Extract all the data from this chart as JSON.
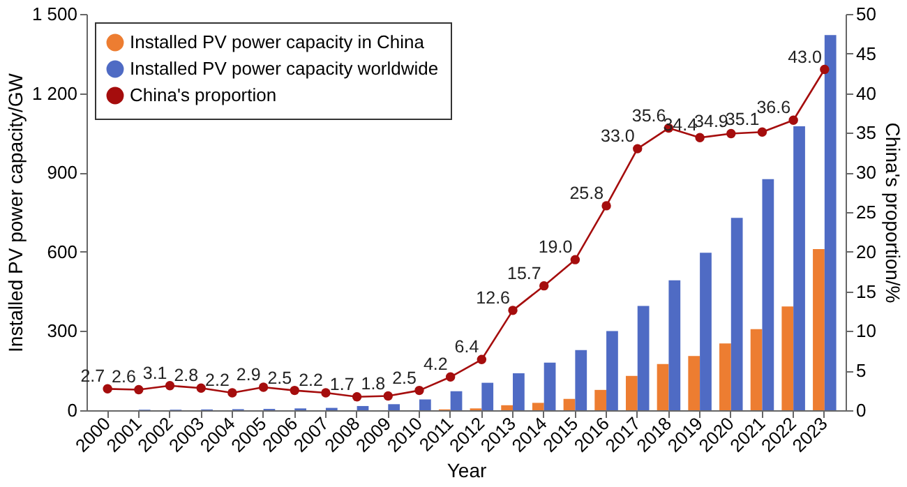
{
  "chart_data": {
    "type": "bar",
    "xlabel": "Year",
    "ylabel": "Installed PV power capacity/GW",
    "y2label": "China's proportion/%",
    "categories": [
      "2000",
      "2001",
      "2002",
      "2003",
      "2004",
      "2005",
      "2006",
      "2007",
      "2008",
      "2009",
      "2010",
      "2011",
      "2012",
      "2013",
      "2014",
      "2015",
      "2016",
      "2017",
      "2018",
      "2019",
      "2020",
      "2021",
      "2022",
      "2023"
    ],
    "series": [
      {
        "name": "Installed PV power capacity in China",
        "color": "#ed7d31",
        "values": [
          0,
          0,
          0,
          0,
          0,
          0,
          0,
          0,
          0,
          0,
          null,
          3,
          7,
          19,
          28,
          43,
          77,
          130,
          175,
          205,
          253,
          307,
          393,
          610
        ]
      },
      {
        "name": "Installed PV power capacity worldwide",
        "color": "#4f6bc4",
        "values": [
          null,
          2,
          2,
          3,
          4,
          5,
          7,
          9,
          16,
          23,
          41,
          72,
          104,
          140,
          180,
          228,
          300,
          395,
          492,
          596,
          728,
          875,
          1075,
          1420
        ]
      },
      {
        "name": "China's proportion",
        "type": "line",
        "axis": "y2",
        "color": "#a50d0d",
        "marker": "circle",
        "values": [
          2.7,
          2.6,
          3.1,
          2.8,
          2.2,
          2.9,
          2.5,
          2.2,
          1.7,
          1.8,
          2.5,
          4.2,
          6.4,
          12.6,
          15.7,
          19.0,
          25.8,
          33.0,
          35.6,
          34.4,
          34.9,
          35.1,
          36.6,
          43.0
        ],
        "value_labels": [
          "2.7",
          "2.6",
          "3.1",
          "2.8",
          "2.2",
          "2.9",
          "2.5",
          "2.2",
          "1.7",
          "1.8",
          "2.5",
          "4.2",
          "6.4",
          "12.6",
          "15.7",
          "19.0",
          "25.8",
          "33.0",
          "35.6",
          "34.4",
          "34.9",
          "35.1",
          "36.6",
          "43.0"
        ]
      }
    ],
    "ylim": [
      0,
      1500
    ],
    "yticks": [
      {
        "value": 0,
        "label": "0"
      },
      {
        "value": 300,
        "label": "300"
      },
      {
        "value": 600,
        "label": "600"
      },
      {
        "value": 900,
        "label": "900"
      },
      {
        "value": 1200,
        "label": "1 200"
      },
      {
        "value": 1500,
        "label": "1 500"
      }
    ],
    "y2lim": [
      0,
      50
    ],
    "y2ticks": [
      0,
      5,
      10,
      15,
      20,
      25,
      30,
      35,
      40,
      45,
      50
    ],
    "legend": "top left",
    "grid": false
  }
}
